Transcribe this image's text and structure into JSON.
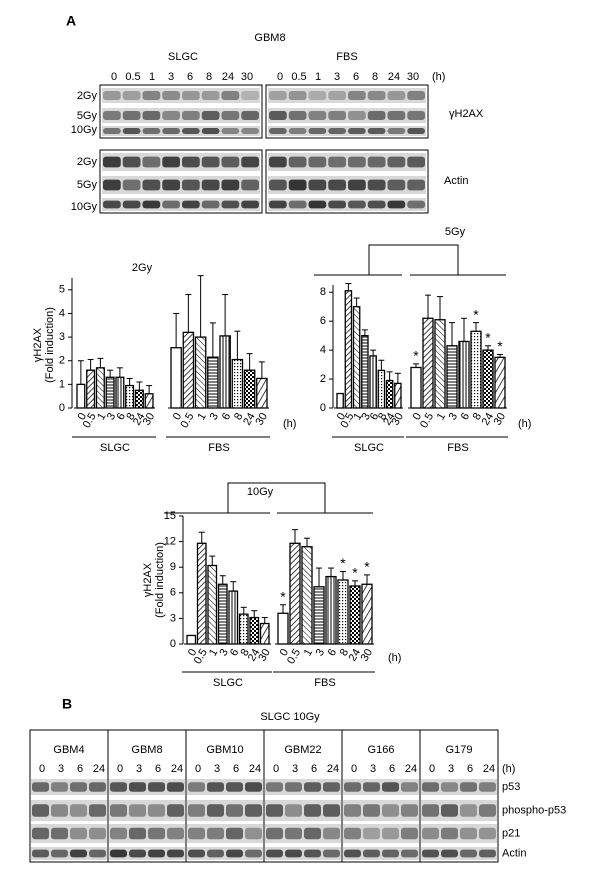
{
  "panel_a": {
    "label": "A",
    "cell_line": "GBM8",
    "groups": [
      "SLGC",
      "FBS"
    ],
    "times": [
      "0",
      "0.5",
      "1",
      "3",
      "6",
      "8",
      "24",
      "30"
    ],
    "unit": "(h)",
    "doses": [
      "2Gy",
      "5Gy",
      "10Gy"
    ],
    "blot_labels": [
      "γH2AX",
      "Actin"
    ]
  },
  "chart_data": [
    {
      "type": "bar",
      "title": "2Gy",
      "y_label": [
        "γH2AX",
        "(Fold induction)"
      ],
      "categories": [
        "0",
        "0.5",
        "1",
        "3",
        "6",
        "8",
        "24",
        "30"
      ],
      "x_unit": "(h)",
      "ylim": [
        0,
        5.5
      ],
      "yticks": [
        0,
        1,
        2,
        3,
        4,
        5
      ],
      "series": [
        {
          "name": "SLGC",
          "values": [
            1,
            1.6,
            1.7,
            1.3,
            1.3,
            0.95,
            0.75,
            0.6
          ],
          "errors": [
            1,
            0.45,
            0.4,
            0.3,
            0.4,
            0.3,
            0.35,
            0.35
          ]
        },
        {
          "name": "FBS",
          "values": [
            2.55,
            3.2,
            3.0,
            2.15,
            3.05,
            2.05,
            1.6,
            1.25
          ],
          "errors": [
            1.45,
            1.6,
            2.6,
            1.45,
            1.75,
            1.2,
            0.7,
            0.7
          ]
        }
      ]
    },
    {
      "type": "bar",
      "title": "5Gy",
      "categories": [
        "0",
        "0.5",
        "1",
        "3",
        "6",
        "8",
        "24",
        "30"
      ],
      "x_unit": "(h)",
      "ylim": [
        0,
        8.5
      ],
      "yticks": [
        0,
        2,
        4,
        6,
        8
      ],
      "series": [
        {
          "name": "SLGC",
          "values": [
            1,
            8.1,
            7.0,
            5.0,
            3.6,
            2.6,
            1.9,
            1.7
          ],
          "errors": [
            0,
            0.5,
            0.6,
            0.4,
            0.4,
            0.7,
            0.6,
            0.7
          ]
        },
        {
          "name": "FBS",
          "values": [
            2.8,
            6.2,
            6.1,
            4.3,
            4.6,
            5.3,
            4.0,
            3.5
          ],
          "errors": [
            0.25,
            1.6,
            1.6,
            1.6,
            1.6,
            0.6,
            0.3,
            0.2
          ],
          "marks": [
            "*",
            null,
            null,
            null,
            null,
            "*",
            "*",
            "*"
          ]
        }
      ]
    },
    {
      "type": "bar",
      "title": "10Gy",
      "y_label": [
        "γH2AX",
        "(Fold induction)"
      ],
      "categories": [
        "0",
        "0.5",
        "1",
        "3",
        "6",
        "8",
        "24",
        "30"
      ],
      "x_unit": "(h)",
      "ylim": [
        0,
        15
      ],
      "yticks": [
        0,
        3,
        6,
        9,
        12,
        15
      ],
      "series": [
        {
          "name": "SLGC",
          "values": [
            1,
            11.8,
            9.2,
            7.0,
            6.2,
            3.5,
            3.1,
            2.4
          ],
          "errors": [
            0,
            1.3,
            1.1,
            1.0,
            1.1,
            0.8,
            0.8,
            0.7
          ]
        },
        {
          "name": "FBS",
          "values": [
            3.6,
            11.8,
            11.4,
            6.7,
            7.9,
            7.5,
            6.8,
            7.0
          ],
          "errors": [
            1.0,
            1.6,
            1.0,
            2.2,
            1.0,
            1.0,
            0.6,
            1.1
          ],
          "marks": [
            "*",
            null,
            null,
            null,
            null,
            "*",
            "*",
            "*"
          ]
        }
      ]
    }
  ],
  "panel_b": {
    "label": "B",
    "title": "SLGC 10Gy",
    "cell_lines": [
      "GBM4",
      "GBM8",
      "GBM10",
      "GBM22",
      "G166",
      "G179"
    ],
    "times": [
      "0",
      "3",
      "6",
      "24"
    ],
    "unit": "(h)",
    "rows": [
      "p53",
      "phospho-p53",
      "p21",
      "Actin"
    ]
  }
}
